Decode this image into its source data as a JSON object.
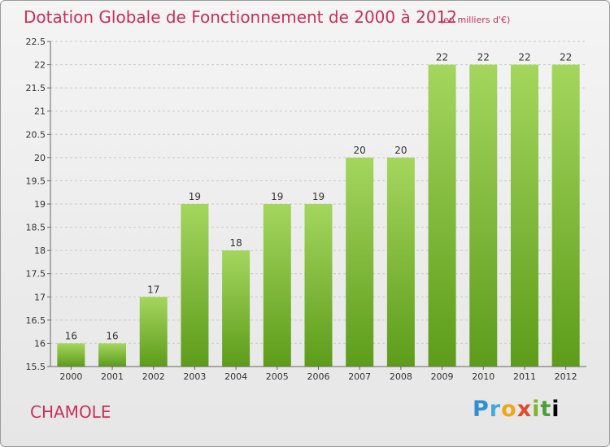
{
  "chart_data": {
    "type": "bar",
    "title": "Dotation Globale de Fonctionnement de 2000 à 2012",
    "subtitle": "(en milliers d'€)",
    "categories": [
      "2000",
      "2001",
      "2002",
      "2003",
      "2004",
      "2005",
      "2006",
      "2007",
      "2008",
      "2009",
      "2010",
      "2011",
      "2012"
    ],
    "values": [
      16,
      16,
      17,
      19,
      18,
      19,
      19,
      20,
      20,
      22,
      22,
      22,
      22
    ],
    "ylim": [
      15.5,
      22.5
    ],
    "yticks": [
      "15.5",
      "16",
      "16.5",
      "17",
      "17.5",
      "18",
      "18.5",
      "19",
      "19.5",
      "20",
      "20.5",
      "21",
      "21.5",
      "22",
      "22.5"
    ],
    "grid": "horizontal-dashed",
    "bar_color": "#7ab82c"
  },
  "footer": {
    "town": "CHAMOLE",
    "logo_letters": [
      "P",
      "r",
      "o",
      "x",
      "i",
      "t",
      "i"
    ]
  },
  "colors": {
    "title": "#c8305a",
    "bar_light": "#a4d65e",
    "bar_dark": "#5d9c1a"
  }
}
